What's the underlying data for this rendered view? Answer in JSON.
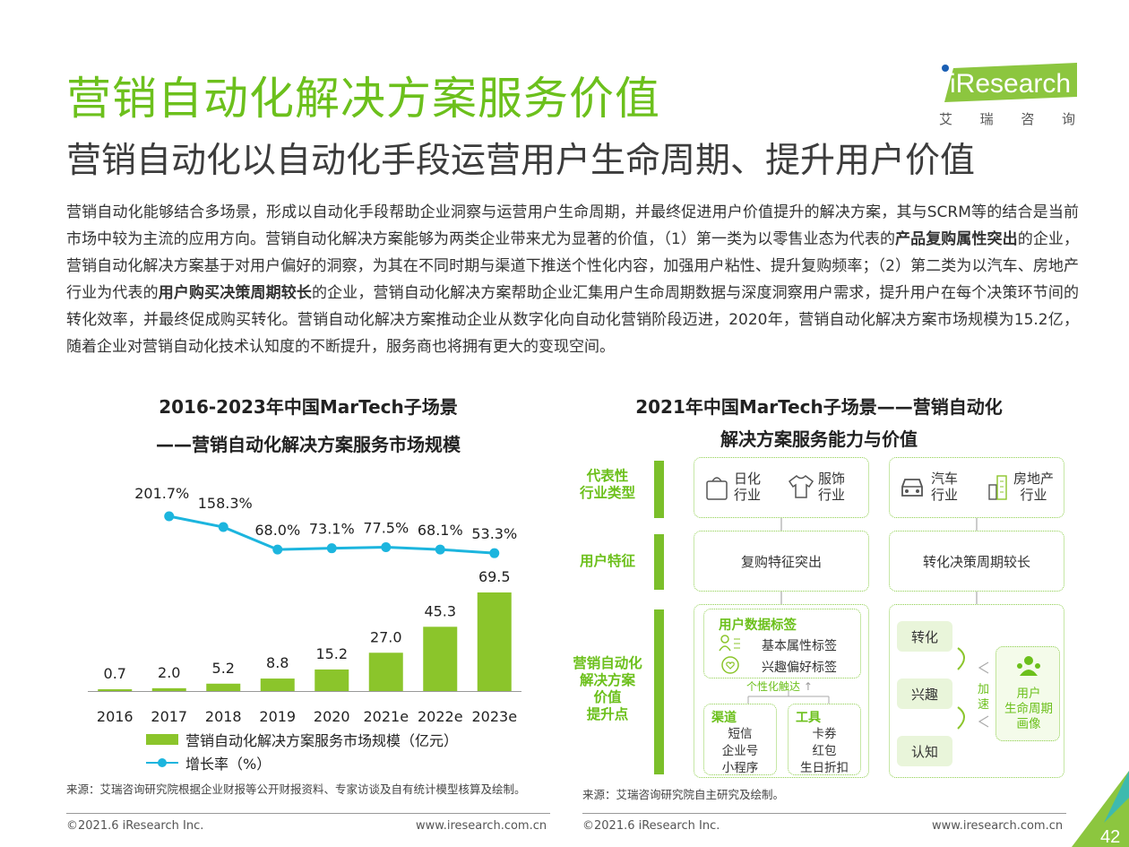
{
  "header": {
    "title": "营销自动化解决方案服务价值",
    "subtitle": "营销自动化以自动化手段运营用户生命周期、提升用户价值",
    "logo_text": "iResearch",
    "logo_sub": [
      "艾",
      "瑞",
      "咨",
      "询"
    ]
  },
  "body": {
    "p1": "营销自动化能够结合多场景，形成以自动化手段帮助企业洞察与运营用户生命周期，并最终促进用户价值提升的解决方案，其与SCRM等的结合是当前市场中较为主流的应用方向。营销自动化解决方案能够为两类企业带来尤为显著的价值，（1）第一类为以零售业态为代表的",
    "b1": "产品复购属性突出",
    "p2": "的企业，营销自动化解决方案基于对用户偏好的洞察，为其在不同时期与渠道下推送个性化内容，加强用户粘性、提升复购频率；（2）第二类为以汽车、房地产行业为代表的",
    "b2": "用户购买决策周期较长",
    "p3": "的企业，营销自动化解决方案帮助企业汇集用户生命周期数据与深度洞察用户需求，提升用户在每个决策环节间的转化效率，并最终促成购买转化。营销自动化解决方案推动企业从数字化向自动化营销阶段迈进，2020年，营销自动化解决方案市场规模为15.2亿，随着企业对营销自动化技术认知度的不断提升，服务商也将拥有更大的变现空间。"
  },
  "chart_data": {
    "type": "bar",
    "title": "2016-2023年中国MarTech子场景",
    "subtitle": "——营销自动化解决方案服务市场规模",
    "categories": [
      "2016",
      "2017",
      "2018",
      "2019",
      "2020",
      "2021e",
      "2022e",
      "2023e"
    ],
    "series": [
      {
        "name": "营销自动化解决方案服务市场规模（亿元）",
        "type": "bar",
        "values": [
          0.7,
          2.0,
          5.2,
          8.8,
          15.2,
          27.0,
          45.3,
          69.5
        ],
        "labels": [
          "0.7",
          "2.0",
          "5.2",
          "8.8",
          "15.2",
          "27.0",
          "45.3",
          "69.5"
        ],
        "color": "#8bc52b"
      },
      {
        "name": "增长率（%）",
        "type": "line",
        "values": [
          null,
          201.7,
          158.3,
          68.0,
          73.1,
          77.5,
          68.1,
          53.3
        ],
        "labels": [
          "",
          "201.7%",
          "158.3%",
          "68.0%",
          "73.1%",
          "77.5%",
          "68.1%",
          "53.3%"
        ],
        "color": "#1cb5de"
      }
    ],
    "legend_position": "bottom",
    "grid": false
  },
  "left_source": "来源：艾瑞咨询研究院根据企业财报等公开财报资料、专家访谈及自有统计模型核算及绘制。",
  "right": {
    "title_l1": "2021年中国MarTech子场景——营销自动化",
    "title_l2": "解决方案服务能力与价值",
    "row_labels": {
      "industry": [
        "代表性",
        "行业类型"
      ],
      "user": [
        "用户特征"
      ],
      "value": [
        "营销自动化",
        "解决方案",
        "价值",
        "提升点"
      ]
    },
    "industries_a": [
      {
        "icon": "tissue-icon",
        "l1": "日化",
        "l2": "行业"
      },
      {
        "icon": "shirt-icon",
        "l1": "服饰",
        "l2": "行业"
      }
    ],
    "industries_b": [
      {
        "icon": "car-icon",
        "l1": "汽车",
        "l2": "行业"
      },
      {
        "icon": "building-icon",
        "l1": "房地产",
        "l2": "行业"
      }
    ],
    "user_a": "复购特征突出",
    "user_b": "转化决策周期较长",
    "tags_title": "用户数据标签",
    "tag1": "基本属性标签",
    "tag2": "兴趣偏好标签",
    "reach": "个性化触达",
    "channel_title": "渠道",
    "channels": [
      "短信",
      "企业号",
      "小程序"
    ],
    "tool_title": "工具",
    "tools": [
      "卡券",
      "红包",
      "生日折扣"
    ],
    "funnel": [
      "转化",
      "兴趣",
      "认知"
    ],
    "accel": [
      "加",
      "速"
    ],
    "profile": [
      "用户",
      "生命周期",
      "画像"
    ],
    "source": "来源：艾瑞咨询研究院自主研究及绘制。"
  },
  "footer": {
    "copyright_left": "©2021.6 iResearch Inc.",
    "url_left": "www.iresearch.com.cn",
    "copyright_right": "©2021.6 iResearch Inc.",
    "url_right": "www.iresearch.com.cn",
    "page": "42"
  },
  "colors": {
    "brand_green": "#6cc01c",
    "bar": "#8bc52b",
    "line": "#1cb5de",
    "tab": "#8cc63f"
  }
}
